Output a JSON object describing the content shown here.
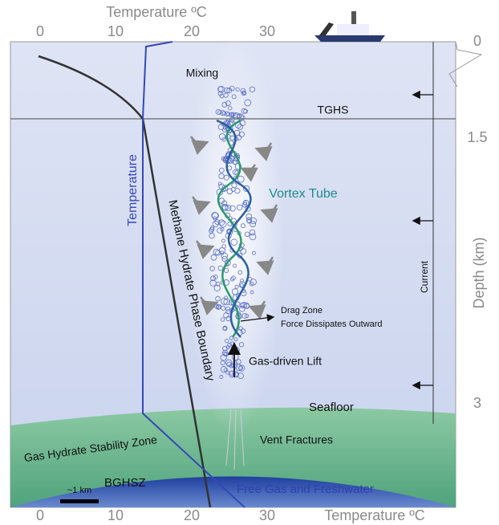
{
  "top_axis": {
    "title": "Temperature ºC",
    "ticks": [
      "0",
      "10",
      "20",
      "30"
    ]
  },
  "bottom_axis": {
    "title": "Temperature ºC",
    "ticks": [
      "0",
      "10",
      "20",
      "30"
    ]
  },
  "right_axis": {
    "title": "Depth (km)",
    "ticks": [
      "0",
      "1.5",
      "3"
    ]
  },
  "labels": {
    "mixing": "Mixing",
    "tghs": "TGHS",
    "temperature": "Temperature",
    "phase_boundary": "Methane Hydrate Phase Boundary",
    "vortex_tube": "Vortex Tube",
    "current": "Current",
    "drag_zone": "Drag Zone",
    "force": "Force Dissipates Outward",
    "lift": "Gas-driven Lift",
    "seafloor": "Seafloor",
    "vent": "Vent Fractures",
    "ghsz": "Gas Hydrate Stability Zone",
    "bghsz": "BGHSZ",
    "free_gas": "Free Gas and Freshwater",
    "scale": "~1 km"
  }
}
